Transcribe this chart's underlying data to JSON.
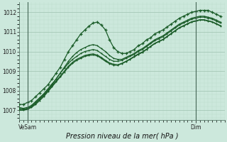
{
  "title": "Pression niveau de la mer( hPa )",
  "ylim": [
    1006.5,
    1012.5
  ],
  "xlim": [
    0,
    50
  ],
  "yticks": [
    1007,
    1008,
    1009,
    1010,
    1011,
    1012
  ],
  "xtick_labels": [
    [
      "VeSam",
      2
    ],
    [
      "Dim",
      43
    ]
  ],
  "bg_color": "#cce8dc",
  "plot_bg_color": "#cce8dc",
  "grid_major_color": "#aaccbb",
  "grid_minor_color": "#bbddcc",
  "line_color": "#1a5c28",
  "line1_x": [
    0,
    1,
    2,
    3,
    4,
    5,
    6,
    7,
    8,
    9,
    10,
    11,
    12,
    13,
    14,
    15,
    16,
    17,
    18,
    19,
    20,
    21,
    22,
    23,
    24,
    25,
    26,
    27,
    28,
    29,
    30,
    31,
    32,
    33,
    34,
    35,
    36,
    37,
    38,
    39,
    40,
    41,
    42,
    43,
    44,
    45,
    46,
    47,
    48,
    49
  ],
  "line1_y": [
    1007.3,
    1007.3,
    1007.4,
    1007.5,
    1007.7,
    1007.9,
    1008.1,
    1008.3,
    1008.6,
    1008.9,
    1009.2,
    1009.6,
    1010.0,
    1010.3,
    1010.6,
    1010.9,
    1011.1,
    1011.3,
    1011.45,
    1011.5,
    1011.35,
    1011.1,
    1010.6,
    1010.2,
    1010.0,
    1009.9,
    1009.9,
    1010.0,
    1010.1,
    1010.3,
    1010.4,
    1010.6,
    1010.7,
    1010.9,
    1011.0,
    1011.1,
    1011.25,
    1011.4,
    1011.55,
    1011.7,
    1011.8,
    1011.9,
    1012.0,
    1012.05,
    1012.1,
    1012.1,
    1012.1,
    1012.0,
    1011.9,
    1011.8
  ],
  "line2_x": [
    0,
    1,
    2,
    3,
    4,
    5,
    6,
    7,
    8,
    9,
    10,
    11,
    12,
    13,
    14,
    15,
    16,
    17,
    18,
    19,
    20,
    21,
    22,
    23,
    24,
    25,
    26,
    27,
    28,
    29,
    30,
    31,
    32,
    33,
    34,
    35,
    36,
    37,
    38,
    39,
    40,
    41,
    42,
    43,
    44,
    45,
    46,
    47,
    48,
    49
  ],
  "line2_y": [
    1007.05,
    1007.05,
    1007.1,
    1007.2,
    1007.4,
    1007.6,
    1007.8,
    1008.05,
    1008.3,
    1008.6,
    1008.9,
    1009.2,
    1009.5,
    1009.75,
    1009.95,
    1010.1,
    1010.2,
    1010.3,
    1010.35,
    1010.3,
    1010.15,
    1010.0,
    1009.8,
    1009.65,
    1009.6,
    1009.6,
    1009.7,
    1009.8,
    1009.9,
    1010.05,
    1010.15,
    1010.3,
    1010.45,
    1010.6,
    1010.7,
    1010.8,
    1010.95,
    1011.1,
    1011.25,
    1011.4,
    1011.5,
    1011.6,
    1011.7,
    1011.75,
    1011.8,
    1011.8,
    1011.75,
    1011.7,
    1011.6,
    1011.5
  ],
  "line3_x": [
    0,
    1,
    2,
    3,
    4,
    5,
    6,
    7,
    8,
    9,
    10,
    11,
    12,
    13,
    14,
    15,
    16,
    17,
    18,
    19,
    20,
    21,
    22,
    23,
    24,
    25,
    26,
    27,
    28,
    29,
    30,
    31,
    32,
    33,
    34,
    35,
    36,
    37,
    38,
    39,
    40,
    41,
    42,
    43,
    44,
    45,
    46,
    47,
    48,
    49
  ],
  "line3_y": [
    1007.15,
    1007.1,
    1007.15,
    1007.25,
    1007.45,
    1007.65,
    1007.85,
    1008.1,
    1008.35,
    1008.6,
    1008.9,
    1009.15,
    1009.4,
    1009.6,
    1009.75,
    1009.9,
    1010.0,
    1010.05,
    1010.1,
    1010.05,
    1009.9,
    1009.75,
    1009.6,
    1009.5,
    1009.5,
    1009.55,
    1009.65,
    1009.75,
    1009.85,
    1010.0,
    1010.1,
    1010.25,
    1010.4,
    1010.55,
    1010.65,
    1010.75,
    1010.9,
    1011.05,
    1011.2,
    1011.35,
    1011.45,
    1011.55,
    1011.65,
    1011.7,
    1011.75,
    1011.75,
    1011.7,
    1011.65,
    1011.55,
    1011.45
  ],
  "line4_x": [
    0,
    1,
    2,
    3,
    4,
    5,
    6,
    7,
    8,
    9,
    10,
    11,
    12,
    13,
    14,
    15,
    16,
    17,
    18,
    19,
    20,
    21,
    22,
    23,
    24,
    25,
    26,
    27,
    28,
    29,
    30,
    31,
    32,
    33,
    34,
    35,
    36,
    37,
    38,
    39,
    40,
    41,
    42,
    43,
    44,
    45,
    46,
    47,
    48,
    49
  ],
  "line4_y": [
    1007.0,
    1007.0,
    1007.05,
    1007.15,
    1007.3,
    1007.5,
    1007.7,
    1007.95,
    1008.2,
    1008.45,
    1008.7,
    1008.95,
    1009.2,
    1009.4,
    1009.55,
    1009.65,
    1009.75,
    1009.8,
    1009.82,
    1009.78,
    1009.65,
    1009.5,
    1009.38,
    1009.3,
    1009.3,
    1009.38,
    1009.48,
    1009.6,
    1009.72,
    1009.85,
    1009.95,
    1010.1,
    1010.25,
    1010.4,
    1010.5,
    1010.6,
    1010.75,
    1010.9,
    1011.05,
    1011.2,
    1011.3,
    1011.4,
    1011.5,
    1011.55,
    1011.6,
    1011.6,
    1011.55,
    1011.5,
    1011.4,
    1011.3
  ],
  "line5_x": [
    0,
    1,
    2,
    3,
    4,
    5,
    6,
    7,
    8,
    9,
    10,
    11,
    12,
    13,
    14,
    15,
    16,
    17,
    18,
    19,
    20,
    21,
    22,
    23,
    24,
    25,
    26,
    27,
    28,
    29,
    30,
    31,
    32,
    33,
    34,
    35,
    36,
    37,
    38,
    39,
    40,
    41,
    42,
    43,
    44,
    45,
    46,
    47,
    48,
    49
  ],
  "line5_y": [
    1007.1,
    1007.05,
    1007.08,
    1007.18,
    1007.35,
    1007.55,
    1007.75,
    1008.0,
    1008.25,
    1008.5,
    1008.75,
    1009.0,
    1009.25,
    1009.45,
    1009.6,
    1009.7,
    1009.8,
    1009.85,
    1009.88,
    1009.82,
    1009.7,
    1009.55,
    1009.42,
    1009.35,
    1009.32,
    1009.4,
    1009.5,
    1009.62,
    1009.75,
    1009.88,
    1009.98,
    1010.12,
    1010.27,
    1010.42,
    1010.52,
    1010.62,
    1010.77,
    1010.92,
    1011.07,
    1011.22,
    1011.32,
    1011.42,
    1011.52,
    1011.57,
    1011.62,
    1011.62,
    1011.57,
    1011.52,
    1011.42,
    1011.32
  ]
}
